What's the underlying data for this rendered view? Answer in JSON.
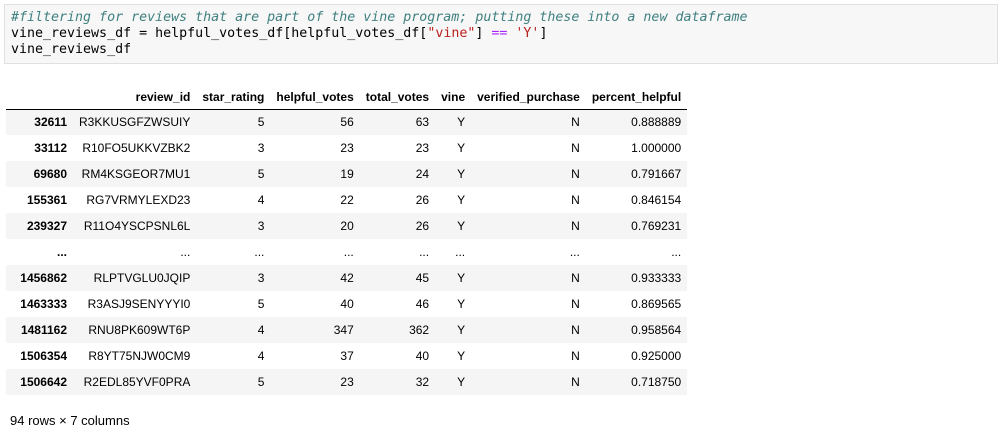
{
  "code": {
    "comment": "#filtering for reviews that are part of the vine program; putting these into a new dataframe",
    "line2": {
      "var": "vine_reviews_df",
      "assign": " = ",
      "expr_a": "helpful_votes_df[helpful_votes_df[",
      "str_key": "\"vine\"",
      "expr_b": "] ",
      "op_eq": "==",
      "space": " ",
      "str_val": "'Y'",
      "expr_c": "]"
    },
    "line3": "vine_reviews_df"
  },
  "table": {
    "columns": [
      "review_id",
      "star_rating",
      "helpful_votes",
      "total_votes",
      "vine",
      "verified_purchase",
      "percent_helpful"
    ],
    "rows": [
      {
        "index": "32611",
        "cells": [
          "R3KKUSGFZWSUIY",
          "5",
          "56",
          "63",
          "Y",
          "N",
          "0.888889"
        ]
      },
      {
        "index": "33112",
        "cells": [
          "R10FO5UKKVZBK2",
          "3",
          "23",
          "23",
          "Y",
          "N",
          "1.000000"
        ]
      },
      {
        "index": "69680",
        "cells": [
          "RM4KSGEOR7MU1",
          "5",
          "19",
          "24",
          "Y",
          "N",
          "0.791667"
        ]
      },
      {
        "index": "155361",
        "cells": [
          "RG7VRMYLEXD23",
          "4",
          "22",
          "26",
          "Y",
          "N",
          "0.846154"
        ]
      },
      {
        "index": "239327",
        "cells": [
          "R11O4YSCPSNL6L",
          "3",
          "20",
          "26",
          "Y",
          "N",
          "0.769231"
        ]
      },
      {
        "index": "...",
        "cells": [
          "...",
          "...",
          "...",
          "...",
          "...",
          "...",
          "..."
        ]
      },
      {
        "index": "1456862",
        "cells": [
          "RLPTVGLU0JQIP",
          "3",
          "42",
          "45",
          "Y",
          "N",
          "0.933333"
        ]
      },
      {
        "index": "1463333",
        "cells": [
          "R3ASJ9SENYYYI0",
          "5",
          "40",
          "46",
          "Y",
          "N",
          "0.869565"
        ]
      },
      {
        "index": "1481162",
        "cells": [
          "RNU8PK609WT6P",
          "4",
          "347",
          "362",
          "Y",
          "N",
          "0.958564"
        ]
      },
      {
        "index": "1506354",
        "cells": [
          "R8YT75NJW0CM9",
          "4",
          "37",
          "40",
          "Y",
          "N",
          "0.925000"
        ]
      },
      {
        "index": "1506642",
        "cells": [
          "R2EDL85YVF0PRA",
          "5",
          "23",
          "32",
          "Y",
          "N",
          "0.718750"
        ]
      }
    ]
  },
  "summary": "94 rows × 7 columns"
}
